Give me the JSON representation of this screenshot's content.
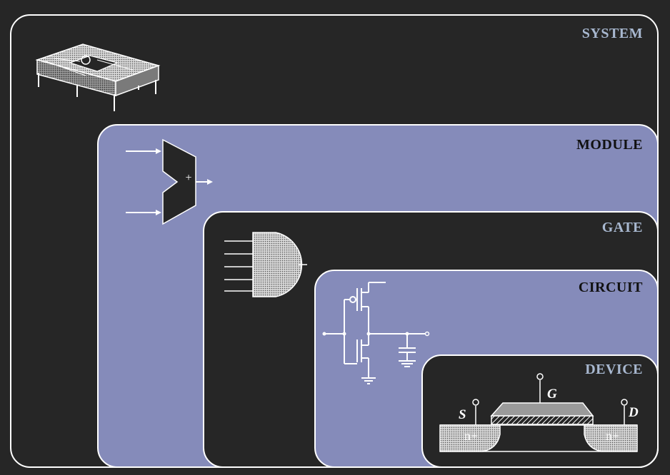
{
  "levels": {
    "system": "SYSTEM",
    "module": "MODULE",
    "gate": "GATE",
    "circuit": "CIRCUIT",
    "device": "DEVICE"
  },
  "module_symbol": {
    "operator": "+"
  },
  "device": {
    "source": "S",
    "gate": "G",
    "drain": "D",
    "source_region": "n+",
    "drain_region": "n+"
  },
  "colors": {
    "background": "#262626",
    "panel_blue": "#858bba",
    "outline": "#ffffff",
    "label_dark_panel": "#a8b8d0",
    "label_blue_panel": "#111111"
  }
}
